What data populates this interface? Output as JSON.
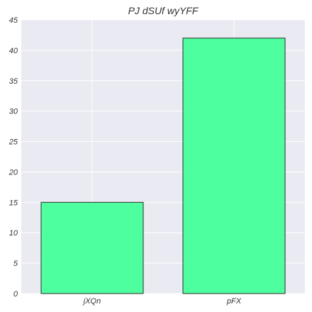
{
  "chart_data": {
    "type": "bar",
    "title": "PJ dSUf wyYFF",
    "xlabel": "",
    "ylabel": "",
    "categories": [
      "jXQn",
      "pFX"
    ],
    "values": [
      15,
      42
    ],
    "ylim": [
      0,
      45
    ],
    "yticks": [
      0,
      5,
      10,
      15,
      20,
      25,
      30,
      35,
      40,
      45
    ],
    "grid": true,
    "colors": {
      "plot_background": "#eaeaf2",
      "bar_fill": "#4dff9e",
      "bar_edge": "#2b2b2b",
      "grid": "#ffffff"
    }
  }
}
